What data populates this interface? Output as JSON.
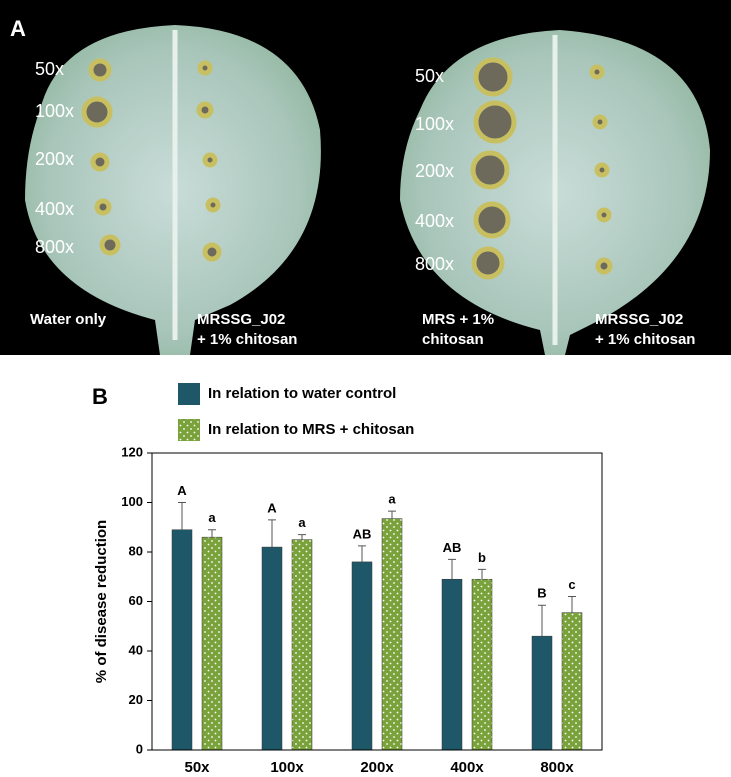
{
  "panel_a": {
    "label": "A",
    "leaves": [
      {
        "dilutions": [
          "50x",
          "100x",
          "200x",
          "400x",
          "800x"
        ],
        "captions": [
          [
            "Water only"
          ],
          [
            "MRSSG_J02",
            "+ 1% chitosan"
          ]
        ]
      },
      {
        "dilutions": [
          "50x",
          "100x",
          "200x",
          "400x",
          "800x"
        ],
        "captions": [
          [
            "MRS + 1%",
            "chitosan"
          ],
          [
            "MRSSG_J02",
            "+ 1% chitosan"
          ]
        ]
      }
    ]
  },
  "chart_data": {
    "type": "bar",
    "panel_label": "B",
    "categories": [
      "50x",
      "100x",
      "200x",
      "400x",
      "800x"
    ],
    "y_label": "% of disease reduction",
    "ylim": [
      0,
      120
    ],
    "yticks": [
      0,
      20,
      40,
      60,
      80,
      100,
      120
    ],
    "series": [
      {
        "name": "In relation to water control",
        "color": "#1e5868",
        "pattern": false,
        "values": [
          89,
          82,
          76,
          69,
          46
        ],
        "errors": [
          11,
          11,
          6.5,
          8,
          12.5
        ],
        "letters": [
          "A",
          "A",
          "AB",
          "AB",
          "B"
        ]
      },
      {
        "name": "In relation to MRS + chitosan",
        "color": "#7aa23b",
        "pattern": true,
        "values": [
          86,
          85,
          93.5,
          69,
          55.5
        ],
        "errors": [
          3,
          2,
          3,
          4,
          6.5
        ],
        "letters": [
          "a",
          "a",
          "a",
          "b",
          "c"
        ]
      }
    ]
  }
}
